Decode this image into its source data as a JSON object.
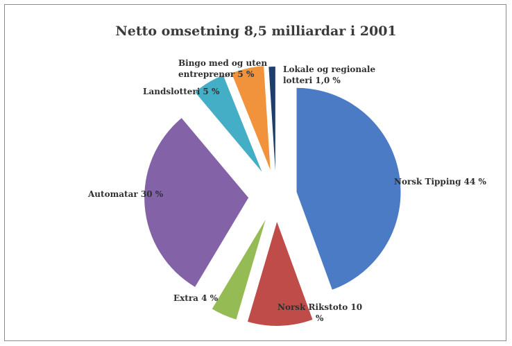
{
  "chart_data": {
    "type": "pie",
    "title": "Netto omsetning 8,5 milliardar i 2001",
    "slices": [
      {
        "name": "Norsk Tipping",
        "value": 44,
        "label_lines": [
          "Norsk Tipping  44 %"
        ],
        "color": "#4a7bc4"
      },
      {
        "name": "Norsk Rikstoto",
        "value": 10,
        "label_lines": [
          "Norsk Rikstoto  10",
          "%"
        ],
        "color": "#bf4c48"
      },
      {
        "name": "Extra",
        "value": 4,
        "label_lines": [
          "Extra 4 %"
        ],
        "color": "#95bb55"
      },
      {
        "name": "Automatar",
        "value": 30,
        "label_lines": [
          "Automatar 30 %"
        ],
        "color": "#8462a8"
      },
      {
        "name": "Landslotteri",
        "value": 5,
        "label_lines": [
          "Landslotteri 5 %"
        ],
        "color": "#44aec6"
      },
      {
        "name": "Bingo med og uten entreprenør",
        "value": 5,
        "label_lines": [
          "Bingo med og uten",
          "entreprenør 5 %"
        ],
        "color": "#f1933c"
      },
      {
        "name": "Lokale og regionale lotteri",
        "value": 1,
        "label_lines": [
          "Lokale og regionale",
          "lotteri 1,0 %"
        ],
        "color": "#1f3e6b"
      }
    ]
  }
}
